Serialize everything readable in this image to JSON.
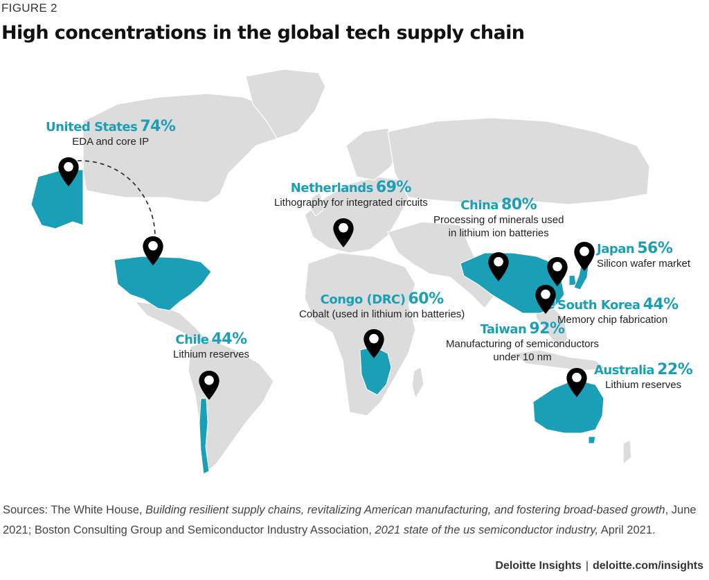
{
  "figure_label": "FIGURE 2",
  "title": "High concentrations in the global tech supply chain",
  "colors": {
    "accent": "#1b9fb6",
    "land": "#dcdcdc",
    "pin": "#000000"
  },
  "icon": "map-pin-icon",
  "annotations": [
    {
      "country": "United States",
      "value": "74%",
      "desc": [
        "EDA and core IP"
      ]
    },
    {
      "country": "Netherlands",
      "value": "69%",
      "desc": [
        "Lithography for integrated circuits"
      ]
    },
    {
      "country": "China",
      "value": "80%",
      "desc": [
        "Processing of minerals used",
        "in lithium ion batteries"
      ]
    },
    {
      "country": "Japan",
      "value": "56%",
      "desc": [
        "Silicon wafer market"
      ]
    },
    {
      "country": "South Korea",
      "value": "44%",
      "desc": [
        "Memory chip fabrication"
      ]
    },
    {
      "country": "Congo (DRC)",
      "value": "60%",
      "desc": [
        "Cobalt (used in lithium ion batteries)"
      ]
    },
    {
      "country": "Taiwan",
      "value": "92%",
      "desc": [
        "Manufacturing of semiconductors",
        "under 10 nm"
      ]
    },
    {
      "country": "Chile",
      "value": "44%",
      "desc": [
        "Lithium reserves"
      ]
    },
    {
      "country": "Australia",
      "value": "22%",
      "desc": [
        "Lithium reserves"
      ]
    }
  ],
  "sources": {
    "prefix": "Sources: The White House, ",
    "title1": "Building resilient supply chains, revitalizing American manufacturing, and fostering broad-based growth",
    "mid": ", June 2021; Boston Consulting Group and Semiconductor Industry Association, ",
    "title2": "2021 state of the us semiconductor industry,",
    "suffix": " April 2021."
  },
  "footer": {
    "brand": "Deloitte Insights",
    "separator": "|",
    "url": "deloitte.com/insights"
  }
}
